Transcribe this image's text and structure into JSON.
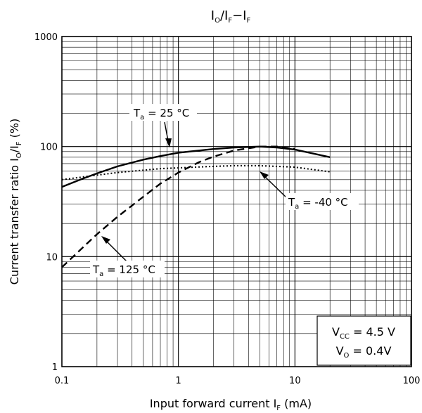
{
  "chart_data": {
    "type": "line",
    "title": {
      "main": "I",
      "sub1": "O",
      "mid1": "/I",
      "sub2": "F",
      "mid2": "−I",
      "sub3": "F"
    },
    "xlabel": {
      "prefix": "Input forward current  I",
      "sub": "F",
      "suffix": " (mA)"
    },
    "ylabel": {
      "prefix": "Current transfer ratio  I",
      "sub1": "O",
      "mid": "/I",
      "sub2": "F",
      "suffix": "  (%)"
    },
    "x_scale": "log",
    "y_scale": "log",
    "xlim": [
      0.1,
      100
    ],
    "ylim": [
      1,
      1000
    ],
    "x_ticks": [
      {
        "value": 0.1,
        "label": "0.1"
      },
      {
        "value": 1,
        "label": "1"
      },
      {
        "value": 10,
        "label": "10"
      },
      {
        "value": 100,
        "label": "100"
      }
    ],
    "y_ticks": [
      {
        "value": 1,
        "label": "1"
      },
      {
        "value": 10,
        "label": "10"
      },
      {
        "value": 100,
        "label": "100"
      },
      {
        "value": 1000,
        "label": "1000"
      }
    ],
    "grid": true,
    "series": [
      {
        "name": "Ta = 25 °C",
        "style": "solid",
        "x": [
          0.1,
          0.15,
          0.2,
          0.3,
          0.5,
          0.7,
          1,
          2,
          3,
          5,
          7,
          10,
          20
        ],
        "y": [
          43,
          51,
          57,
          66,
          76,
          82,
          88,
          95,
          98,
          100,
          98,
          94,
          80
        ]
      },
      {
        "name": "Ta = -40 °C",
        "style": "dotted",
        "x": [
          0.1,
          0.2,
          0.3,
          0.5,
          0.7,
          1,
          2,
          3,
          5,
          7,
          10,
          20
        ],
        "y": [
          50,
          55,
          58,
          61,
          63,
          64,
          66,
          67,
          67,
          66,
          65,
          59
        ]
      },
      {
        "name": "Ta = 125 °C",
        "style": "dashed",
        "x": [
          0.1,
          0.15,
          0.2,
          0.3,
          0.5,
          0.7,
          1,
          1.5,
          2,
          3,
          5,
          7,
          10
        ],
        "y": [
          8,
          12,
          16,
          23,
          35,
          46,
          58,
          72,
          81,
          92,
          100,
          100,
          95
        ]
      }
    ],
    "annotations": [
      {
        "id": "ta25",
        "pre": "T",
        "sub": "a",
        "post": " = 25 °C"
      },
      {
        "id": "ta40",
        "pre": "T",
        "sub": "a",
        "post": " = -40 °C"
      },
      {
        "id": "ta125",
        "pre": "T",
        "sub": "a",
        "post": " = 125 °C"
      }
    ],
    "conditions": {
      "line1": {
        "pre": "V",
        "sub": "CC",
        "post": " = 4.5 V"
      },
      "line2": {
        "pre": "V",
        "sub": "O",
        "post": " = 0.4V"
      }
    }
  }
}
